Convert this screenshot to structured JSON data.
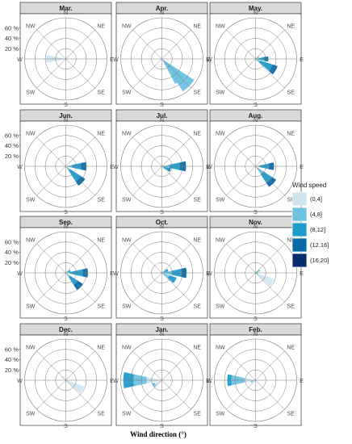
{
  "chart_data": {
    "type": "bar",
    "subtype": "polar-stacked-wind-rose",
    "xlabel": "Wind direction (°)",
    "directions": [
      "N",
      "NE",
      "E",
      "SE",
      "S",
      "SW",
      "W",
      "NW"
    ],
    "radial_ticks": [
      "20 %",
      "40 %",
      "60 %"
    ],
    "radial_tick_values": [
      20,
      40,
      60
    ],
    "radial_max": 80,
    "legend": {
      "title": "Wind speed",
      "position": "right",
      "items": [
        {
          "label": "(0,4]",
          "color": "#cfe6f0"
        },
        {
          "label": "(4,8]",
          "color": "#6ec3e0"
        },
        {
          "label": "(8,12]",
          "color": "#1f9ccb"
        },
        {
          "label": "(12,16]",
          "color": "#0b6aa8"
        },
        {
          "label": "(16,20]",
          "color": "#062d6b"
        }
      ]
    },
    "panels": [
      {
        "month": "Mar.",
        "segments": [
          {
            "dir": 270,
            "values": [
              38,
              0,
              0,
              0,
              0
            ]
          }
        ]
      },
      {
        "month": "Apr.",
        "segments": [
          {
            "dir": 135,
            "values": [
              0,
              75,
              0,
              0,
              0
            ]
          },
          {
            "dir": 140,
            "values": [
              0,
              55,
              0,
              0,
              0
            ]
          }
        ]
      },
      {
        "month": "May.",
        "segments": [
          {
            "dir": 90,
            "values": [
              0,
              5,
              12,
              8,
              0
            ]
          },
          {
            "dir": 120,
            "values": [
              0,
              10,
              25,
              10,
              0
            ]
          },
          {
            "dir": 60,
            "values": [
              0,
              8,
              0,
              0,
              0
            ]
          }
        ]
      },
      {
        "month": "Jun.",
        "segments": [
          {
            "dir": 90,
            "values": [
              0,
              12,
              18,
              10,
              0
            ]
          },
          {
            "dir": 135,
            "values": [
              0,
              10,
              25,
              10,
              0
            ]
          }
        ]
      },
      {
        "month": "Jul.",
        "segments": [
          {
            "dir": 90,
            "values": [
              0,
              15,
              20,
              12,
              0
            ]
          },
          {
            "dir": 120,
            "values": [
              0,
              8,
              0,
              0,
              0
            ]
          },
          {
            "dir": 115,
            "values": [
              0,
              5,
              10,
              3,
              0
            ]
          }
        ]
      },
      {
        "month": "Aug.",
        "segments": [
          {
            "dir": 90,
            "values": [
              0,
              8,
              18,
              10,
              0
            ]
          },
          {
            "dir": 135,
            "values": [
              0,
              18,
              20,
              10,
              0
            ]
          }
        ]
      },
      {
        "month": "Sep.",
        "segments": [
          {
            "dir": 90,
            "values": [
              0,
              8,
              25,
              10,
              0
            ]
          },
          {
            "dir": 135,
            "values": [
              0,
              10,
              18,
              12,
              0
            ]
          },
          {
            "dir": 65,
            "values": [
              0,
              5,
              5,
              0,
              0
            ]
          }
        ]
      },
      {
        "month": "Oct.",
        "segments": [
          {
            "dir": 90,
            "values": [
              0,
              20,
              18,
              10,
              0
            ]
          },
          {
            "dir": 120,
            "values": [
              0,
              15,
              15,
              0,
              0
            ]
          },
          {
            "dir": 65,
            "values": [
              0,
              5,
              8,
              0,
              0
            ]
          }
        ]
      },
      {
        "month": "Nov.",
        "segments": [
          {
            "dir": 120,
            "values": [
              38,
              0,
              0,
              0,
              0
            ]
          },
          {
            "dir": 60,
            "values": [
              0,
              10,
              0,
              0,
              0
            ]
          },
          {
            "dir": 110,
            "values": [
              0,
              5,
              0,
              0,
              0
            ]
          }
        ]
      },
      {
        "month": "Dec.",
        "segments": [
          {
            "dir": 120,
            "values": [
              38,
              0,
              0,
              0,
              0
            ]
          },
          {
            "dir": 315,
            "values": [
              10,
              0,
              0,
              0,
              0
            ]
          },
          {
            "dir": 100,
            "values": [
              5,
              0,
              0,
              0,
              0
            ]
          }
        ]
      },
      {
        "month": "Jan.",
        "segments": [
          {
            "dir": 270,
            "values": [
              30,
              25,
              20,
              0,
              0
            ]
          },
          {
            "dir": 240,
            "values": [
              15,
              5,
              0,
              0,
              0
            ]
          }
        ]
      },
      {
        "month": "Feb.",
        "segments": [
          {
            "dir": 270,
            "values": [
              22,
              25,
              8,
              0,
              0
            ]
          },
          {
            "dir": 250,
            "values": [
              5,
              5,
              0,
              0,
              0
            ]
          }
        ]
      }
    ]
  }
}
